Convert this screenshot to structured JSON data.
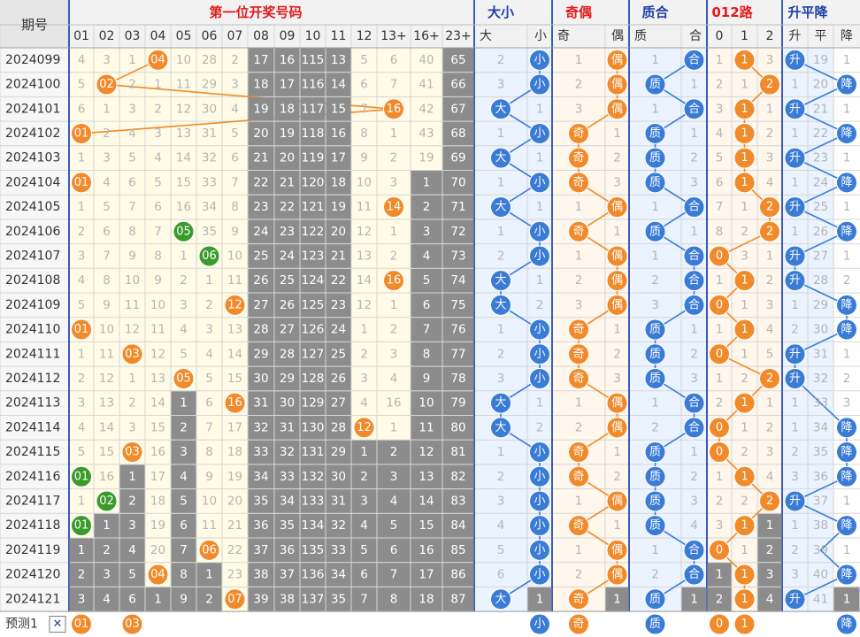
{
  "chart_data": {
    "type": "table",
    "header": {
      "period_label": "期号",
      "groups": [
        "第一位开奖号码",
        "大小",
        "奇偶",
        "质合",
        "012路",
        "升平降"
      ],
      "number_columns": [
        "01",
        "02",
        "03",
        "04",
        "05",
        "06",
        "07",
        "08",
        "09",
        "10",
        "11",
        "12",
        "13+",
        "16+",
        "23+"
      ],
      "size_columns": [
        "大",
        "小"
      ],
      "parity_columns": [
        "奇",
        "偶"
      ],
      "prime_columns": [
        "质",
        "合"
      ],
      "road_columns": [
        "0",
        "1",
        "2"
      ],
      "trend_columns": [
        "升",
        "平",
        "降"
      ]
    },
    "labels": {
      "big": "大",
      "small": "小",
      "odd": "奇",
      "even": "偶",
      "prime": "质",
      "composite": "合",
      "up": "升",
      "flat": "平",
      "down": "降"
    },
    "periods": [
      "2024099",
      "2024100",
      "2024101",
      "2024102",
      "2024103",
      "2024104",
      "2024105",
      "2024106",
      "2024107",
      "2024108",
      "2024109",
      "2024110",
      "2024111",
      "2024112",
      "2024113",
      "2024114",
      "2024115",
      "2024116",
      "2024117",
      "2024118",
      "2024119",
      "2024120",
      "2024121"
    ],
    "winning_numbers": [
      "04",
      "02",
      "16",
      "01",
      "19",
      "01",
      "14",
      "05",
      "06",
      "16",
      "12",
      "01",
      "03",
      "05",
      "16",
      "12",
      "03",
      "01",
      "02",
      "01",
      "06",
      "04",
      "07"
    ],
    "omission_rows": [
      [
        "4",
        "3",
        "1",
        "04",
        "10",
        "28",
        "2",
        "17",
        "16",
        "115",
        "13",
        "5",
        "6",
        "40",
        "65",
        "2",
        "小",
        "1",
        "偶",
        "1",
        "合",
        "1",
        "1",
        "3",
        "升",
        "19",
        "1"
      ],
      [
        "5",
        "02",
        "2",
        "1",
        "11",
        "29",
        "3",
        "18",
        "17",
        "116",
        "14",
        "6",
        "7",
        "41",
        "66",
        "3",
        "小",
        "2",
        "偶",
        "质",
        "1",
        "2",
        "1",
        "2",
        "1",
        "20",
        "降"
      ],
      [
        "6",
        "1",
        "3",
        "2",
        "12",
        "30",
        "4",
        "19",
        "18",
        "117",
        "15",
        "7",
        "16",
        "42",
        "67",
        "大",
        "1",
        "3",
        "偶",
        "1",
        "合",
        "3",
        "1",
        "1",
        "升",
        "21",
        "1"
      ],
      [
        "01",
        "2",
        "4",
        "3",
        "13",
        "31",
        "5",
        "20",
        "19",
        "118",
        "16",
        "8",
        "1",
        "43",
        "68",
        "1",
        "小",
        "奇",
        "1",
        "质",
        "1",
        "4",
        "1",
        "2",
        "1",
        "22",
        "降"
      ],
      [
        "1",
        "3",
        "5",
        "4",
        "14",
        "32",
        "6",
        "21",
        "20",
        "119",
        "17",
        "9",
        "2",
        "19",
        "69",
        "大",
        "1",
        "奇",
        "2",
        "质",
        "2",
        "5",
        "1",
        "3",
        "升",
        "23",
        "1"
      ],
      [
        "01",
        "4",
        "6",
        "5",
        "15",
        "33",
        "7",
        "22",
        "21",
        "120",
        "18",
        "10",
        "3",
        "1",
        "70",
        "1",
        "小",
        "奇",
        "3",
        "质",
        "3",
        "6",
        "1",
        "4",
        "1",
        "24",
        "降"
      ],
      [
        "1",
        "5",
        "7",
        "6",
        "16",
        "34",
        "8",
        "23",
        "22",
        "121",
        "19",
        "11",
        "14",
        "2",
        "71",
        "大",
        "1",
        "1",
        "偶",
        "1",
        "合",
        "7",
        "1",
        "2",
        "升",
        "25",
        "1"
      ],
      [
        "2",
        "6",
        "8",
        "7",
        "05",
        "35",
        "9",
        "24",
        "23",
        "122",
        "20",
        "12",
        "1",
        "3",
        "72",
        "1",
        "小",
        "奇",
        "1",
        "质",
        "1",
        "8",
        "2",
        "2",
        "1",
        "26",
        "降"
      ],
      [
        "3",
        "7",
        "9",
        "8",
        "1",
        "06",
        "10",
        "25",
        "24",
        "123",
        "21",
        "13",
        "2",
        "4",
        "73",
        "2",
        "小",
        "1",
        "偶",
        "1",
        "合",
        "0",
        "3",
        "1",
        "升",
        "27",
        "1"
      ],
      [
        "4",
        "8",
        "10",
        "9",
        "2",
        "1",
        "11",
        "26",
        "25",
        "124",
        "22",
        "14",
        "16",
        "5",
        "74",
        "大",
        "1",
        "2",
        "偶",
        "2",
        "合",
        "1",
        "1",
        "2",
        "升",
        "28",
        "2"
      ],
      [
        "5",
        "9",
        "11",
        "10",
        "3",
        "2",
        "12",
        "27",
        "26",
        "125",
        "23",
        "12",
        "1",
        "6",
        "75",
        "大",
        "2",
        "3",
        "偶",
        "3",
        "合",
        "0",
        "1",
        "3",
        "1",
        "29",
        "降"
      ],
      [
        "01",
        "10",
        "12",
        "11",
        "4",
        "3",
        "13",
        "28",
        "27",
        "126",
        "24",
        "1",
        "2",
        "7",
        "76",
        "1",
        "小",
        "奇",
        "1",
        "质",
        "1",
        "1",
        "1",
        "4",
        "2",
        "30",
        "降"
      ],
      [
        "1",
        "11",
        "03",
        "12",
        "5",
        "4",
        "14",
        "29",
        "28",
        "127",
        "25",
        "2",
        "3",
        "8",
        "77",
        "2",
        "小",
        "奇",
        "2",
        "质",
        "2",
        "0",
        "1",
        "5",
        "升",
        "31",
        "1"
      ],
      [
        "2",
        "12",
        "1",
        "13",
        "05",
        "5",
        "15",
        "30",
        "29",
        "128",
        "26",
        "3",
        "4",
        "9",
        "78",
        "3",
        "小",
        "奇",
        "3",
        "质",
        "3",
        "1",
        "2",
        "2",
        "升",
        "32",
        "2"
      ],
      [
        "3",
        "13",
        "2",
        "14",
        "1",
        "6",
        "16",
        "31",
        "30",
        "129",
        "27",
        "4",
        "16",
        "10",
        "79",
        "大",
        "1",
        "1",
        "偶",
        "1",
        "合",
        "2",
        "1",
        "1",
        "1",
        "33",
        "3"
      ],
      [
        "4",
        "14",
        "3",
        "15",
        "2",
        "7",
        "17",
        "32",
        "31",
        "130",
        "28",
        "12",
        "1",
        "11",
        "80",
        "大",
        "2",
        "2",
        "偶",
        "2",
        "合",
        "0",
        "1",
        "2",
        "1",
        "34",
        "降"
      ],
      [
        "5",
        "15",
        "03",
        "16",
        "3",
        "8",
        "18",
        "33",
        "32",
        "131",
        "29",
        "1",
        "2",
        "12",
        "81",
        "1",
        "小",
        "奇",
        "1",
        "质",
        "1",
        "0",
        "2",
        "3",
        "2",
        "35",
        "降"
      ],
      [
        "01",
        "16",
        "1",
        "17",
        "4",
        "9",
        "19",
        "34",
        "33",
        "132",
        "30",
        "2",
        "3",
        "13",
        "82",
        "2",
        "小",
        "奇",
        "2",
        "质",
        "2",
        "1",
        "1",
        "4",
        "3",
        "36",
        "降"
      ],
      [
        "1",
        "02",
        "2",
        "18",
        "5",
        "10",
        "20",
        "35",
        "34",
        "133",
        "31",
        "3",
        "4",
        "14",
        "83",
        "3",
        "小",
        "1",
        "偶",
        "质",
        "3",
        "2",
        "2",
        "2",
        "升",
        "37",
        "1"
      ],
      [
        "01",
        "1",
        "3",
        "19",
        "6",
        "11",
        "21",
        "36",
        "35",
        "134",
        "32",
        "4",
        "5",
        "15",
        "84",
        "4",
        "小",
        "奇",
        "1",
        "质",
        "4",
        "3",
        "1",
        "1",
        "1",
        "38",
        "降"
      ],
      [
        "1",
        "2",
        "4",
        "20",
        "7",
        "06",
        "22",
        "37",
        "36",
        "135",
        "33",
        "5",
        "6",
        "16",
        "85",
        "5",
        "小",
        "1",
        "偶",
        "1",
        "合",
        "0",
        "1",
        "2",
        "2",
        "39",
        "1"
      ],
      [
        "2",
        "3",
        "5",
        "04",
        "8",
        "1",
        "23",
        "38",
        "37",
        "136",
        "34",
        "6",
        "7",
        "17",
        "86",
        "6",
        "小",
        "2",
        "偶",
        "2",
        "合",
        "1",
        "1",
        "3",
        "3",
        "40",
        "降"
      ],
      [
        "3",
        "4",
        "6",
        "1",
        "9",
        "2",
        "07",
        "39",
        "38",
        "137",
        "35",
        "7",
        "8",
        "18",
        "87",
        "大",
        "1",
        "奇",
        "1",
        "质",
        "1",
        "2",
        "1",
        "4",
        "升",
        "41",
        "1"
      ]
    ],
    "forecast": {
      "label": "预测1",
      "close_symbol": "✕",
      "values": [
        "01",
        "",
        "03",
        "",
        "",
        "",
        "",
        "",
        "",
        "",
        "",
        "",
        "",
        "",
        "",
        "",
        "小",
        "奇",
        "",
        "质",
        "",
        "0",
        "1",
        "",
        "",
        "",
        "降"
      ]
    }
  }
}
